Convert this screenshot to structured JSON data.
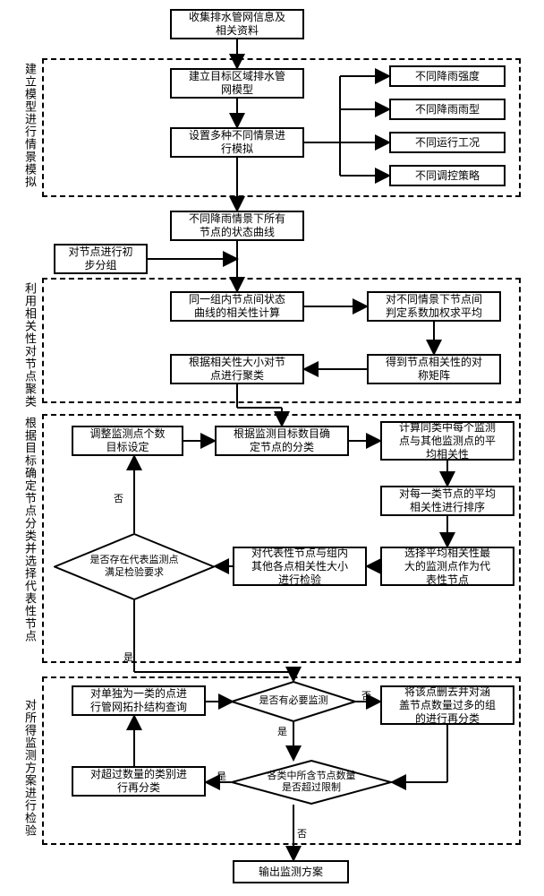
{
  "boxes": {
    "b1": "收集排水管网信息及\n相关资料",
    "b2": "建立目标区域排水管\n网模型",
    "b3": "设置多种不同情景进\n行模拟",
    "b4": "不同降雨强度",
    "b5": "不同降雨雨型",
    "b6": "不同运行工况",
    "b7": "不同调控策略",
    "b8": "不同降雨情景下所有\n节点的状态曲线",
    "b9": "对节点进行初\n步分组",
    "b10": "同一组内节点间状态\n曲线的相关性计算",
    "b11": "对不同情景下节点间\n判定系数加权求平均",
    "b12": "根据相关性大小对节\n点进行聚类",
    "b13": "得到节点相关性的对\n称矩阵",
    "b14": "调整监测点个数\n目标设定",
    "b15": "根据监测目标数目确\n定节点的分类",
    "b16": "计算同类中每个监测\n点与其他监测点的平\n均相关性",
    "b17": "对每一类节点的平均\n相关性进行排序",
    "b18": "对代表性节点与组内\n其他各点相关性大小\n进行检验",
    "b19": "选择平均相关性最\n大的监测点作为代\n表性节点",
    "b20": "对单独为一类的点进\n行管网拓扑结构查询",
    "b21": "将该点删去并对涵\n盖节点数量过多的组\n的进行再分类",
    "b22": "对超过数量的类别进\n行再分类",
    "b23": "输出监测方案"
  },
  "diamonds": {
    "d1": "是否存在代表监测点\n满足检验要求",
    "d2": "是否有必要监测",
    "d3": "各类中所含节点数量\n是否超过限制"
  },
  "groupLabels": {
    "g1": "建立模型进行情景模拟",
    "g2": "利用相关性对节点聚类",
    "g3": "根据目标确定节点分类并选择代表性节点",
    "g4": "对所得监测方案进行检验"
  },
  "edgeLabels": {
    "no1": "否",
    "yes1": "是",
    "yes2": "是",
    "no2": "否",
    "yes3": "是",
    "no3": "否"
  },
  "style": {
    "box_border": "#000000",
    "bg": "#ffffff",
    "font_size_box": 12,
    "font_size_diamond": 11
  }
}
